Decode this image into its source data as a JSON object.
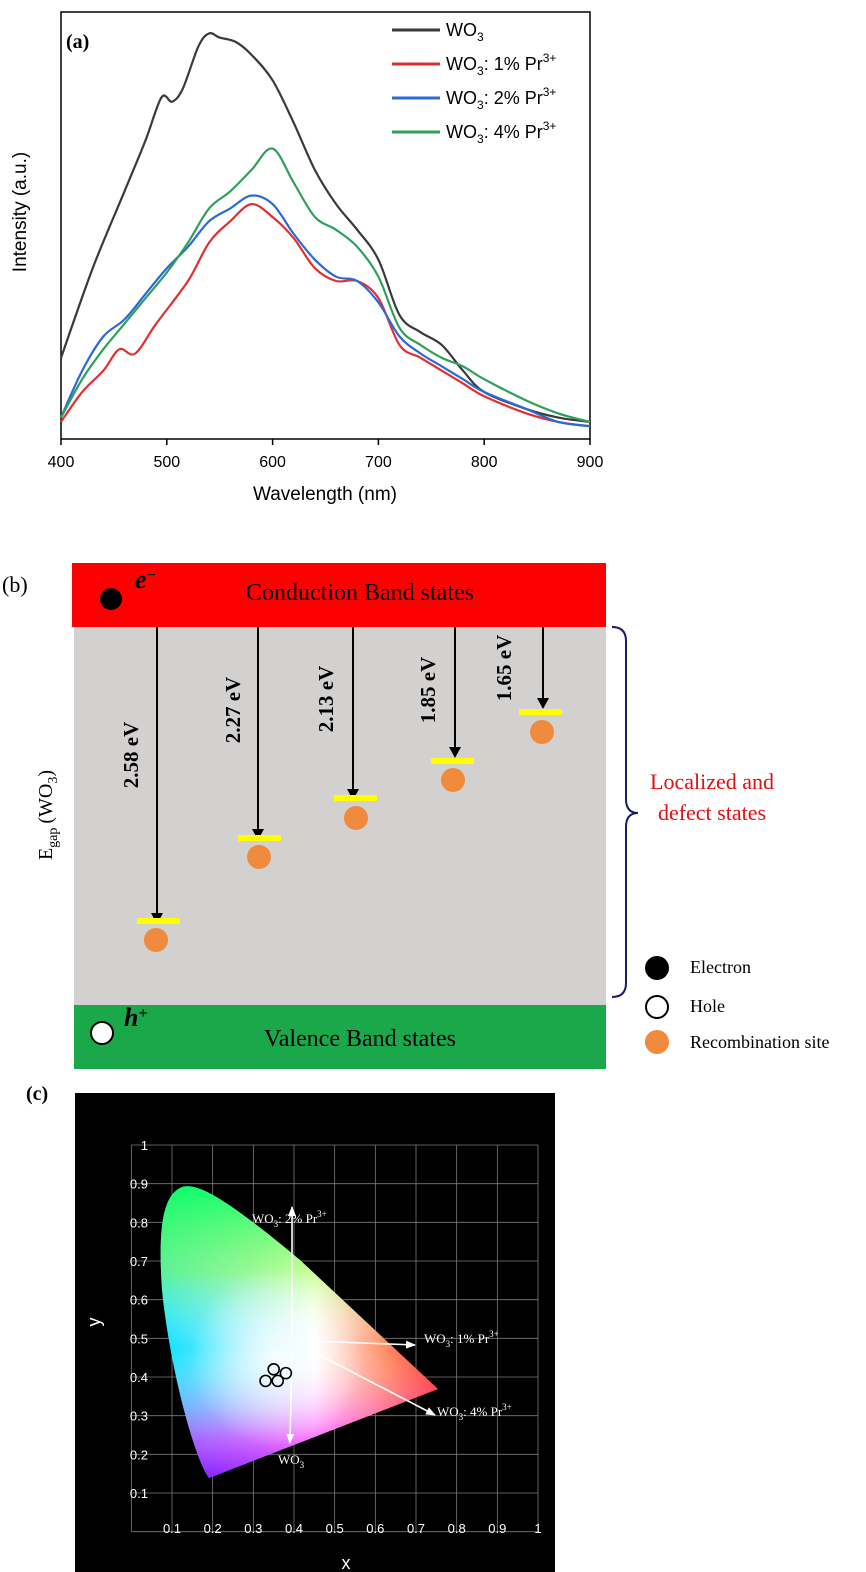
{
  "chart_data": [
    {
      "type": "line",
      "panel_label": "(a)",
      "xlabel": "Wavelength (nm)",
      "ylabel": "Intensity (a.u.)",
      "xlim": [
        400,
        900
      ],
      "ylim": [
        0,
        1.0
      ],
      "x_ticks": [
        "400",
        "500",
        "600",
        "700",
        "800",
        "900"
      ],
      "y_ticks_shown": false,
      "grid": false,
      "legend_position": "top-right",
      "series": [
        {
          "name_base": "WO",
          "name_sub": "3",
          "name_rest": "",
          "name_sup": "",
          "color": "#3a3a3a",
          "x": [
            400,
            430,
            460,
            480,
            495,
            505,
            515,
            530,
            540,
            550,
            565,
            580,
            600,
            620,
            640,
            660,
            680,
            700,
            720,
            740,
            760,
            780,
            800,
            840,
            870,
            900
          ],
          "values": [
            0.19,
            0.4,
            0.58,
            0.7,
            0.8,
            0.79,
            0.82,
            0.92,
            0.95,
            0.94,
            0.93,
            0.9,
            0.84,
            0.74,
            0.63,
            0.55,
            0.49,
            0.42,
            0.29,
            0.25,
            0.22,
            0.16,
            0.11,
            0.07,
            0.05,
            0.04
          ]
        },
        {
          "name_base": "WO",
          "name_sub": "3",
          "name_rest": ": 1% Pr",
          "name_sup": "3+",
          "color": "#e03030",
          "x": [
            400,
            420,
            440,
            455,
            470,
            490,
            520,
            540,
            560,
            580,
            600,
            620,
            640,
            660,
            680,
            700,
            720,
            740,
            760,
            780,
            800,
            840,
            870,
            900
          ],
          "values": [
            0.04,
            0.11,
            0.16,
            0.21,
            0.2,
            0.27,
            0.37,
            0.46,
            0.51,
            0.55,
            0.52,
            0.47,
            0.4,
            0.37,
            0.37,
            0.33,
            0.22,
            0.19,
            0.16,
            0.13,
            0.1,
            0.06,
            0.04,
            0.03
          ]
        },
        {
          "name_base": "WO",
          "name_sub": "3",
          "name_rest": ": 2% Pr",
          "name_sup": "3+",
          "color": "#2a6ad8",
          "x": [
            400,
            420,
            440,
            460,
            480,
            500,
            520,
            540,
            560,
            580,
            600,
            620,
            640,
            660,
            680,
            700,
            720,
            740,
            760,
            780,
            800,
            840,
            870,
            900
          ],
          "values": [
            0.05,
            0.16,
            0.24,
            0.28,
            0.34,
            0.4,
            0.45,
            0.51,
            0.54,
            0.57,
            0.55,
            0.48,
            0.42,
            0.38,
            0.37,
            0.32,
            0.24,
            0.2,
            0.17,
            0.14,
            0.11,
            0.07,
            0.04,
            0.03
          ]
        },
        {
          "name_base": "WO",
          "name_sub": "3",
          "name_rest": ": 4% Pr",
          "name_sup": "3+",
          "color": "#2ea05a",
          "x": [
            400,
            420,
            440,
            460,
            480,
            500,
            520,
            540,
            560,
            580,
            600,
            620,
            640,
            660,
            680,
            700,
            720,
            740,
            760,
            780,
            800,
            840,
            870,
            900
          ],
          "values": [
            0.05,
            0.14,
            0.21,
            0.27,
            0.33,
            0.39,
            0.46,
            0.54,
            0.58,
            0.63,
            0.68,
            0.6,
            0.52,
            0.49,
            0.45,
            0.38,
            0.26,
            0.22,
            0.19,
            0.17,
            0.14,
            0.09,
            0.06,
            0.04
          ]
        }
      ]
    },
    {
      "type": "energy-level-diagram",
      "panel_label": "(b)",
      "conduction_band_label": "Conduction Band states",
      "valence_band_label": "Valence Band states",
      "electron_symbol": "e",
      "electron_sup": "−",
      "hole_symbol": "h",
      "hole_sup": "+",
      "ylabel_base": "E",
      "ylabel_sub": "gap",
      "ylabel_rest": "(WO",
      "ylabel_sub2": "3",
      "ylabel_end": ")",
      "bracket_label_line1": "Localized and",
      "bracket_label_line2": "defect states",
      "transitions": [
        "2.58 eV",
        "2.27 eV",
        "2.13 eV",
        "1.85 eV",
        "1.65 eV"
      ],
      "legend": [
        "Electron",
        "Hole",
        "Recombination site"
      ],
      "colors": {
        "conduction": "#ff0000",
        "gap": "#d3d0d0",
        "valence": "#1aa84a",
        "level": "#ffff00",
        "site": "#f08a3c",
        "bracket_text": "#e01010"
      }
    },
    {
      "type": "scatter",
      "panel_label": "(c)",
      "chart_kind": "CIE 1931 chromaticity diagram",
      "xlabel": "x",
      "ylabel": "y",
      "xlim": [
        0,
        1
      ],
      "ylim": [
        0,
        1
      ],
      "x_ticks": [
        "0.1",
        "0.2",
        "0.3",
        "0.4",
        "0.5",
        "0.6",
        "0.7",
        "0.8",
        "0.9",
        "1"
      ],
      "y_ticks": [
        "0.1",
        "0.2",
        "0.3",
        "0.4",
        "0.5",
        "0.6",
        "0.7",
        "0.8",
        "0.9",
        "1"
      ],
      "grid": true,
      "background": "#000000",
      "points": [
        {
          "x": 0.35,
          "y": 0.42
        },
        {
          "x": 0.38,
          "y": 0.41
        },
        {
          "x": 0.33,
          "y": 0.39
        },
        {
          "x": 0.36,
          "y": 0.39
        }
      ],
      "annotations": [
        {
          "base": "WO",
          "sub": "3",
          "rest": ": 2% Pr",
          "sup": "3+"
        },
        {
          "base": "WO",
          "sub": "3",
          "rest": ": 1% Pr",
          "sup": "3+"
        },
        {
          "base": "WO",
          "sub": "3",
          "rest": ": 4% Pr",
          "sup": "3+"
        },
        {
          "base": "WO",
          "sub": "3",
          "rest": "",
          "sup": ""
        }
      ]
    }
  ]
}
